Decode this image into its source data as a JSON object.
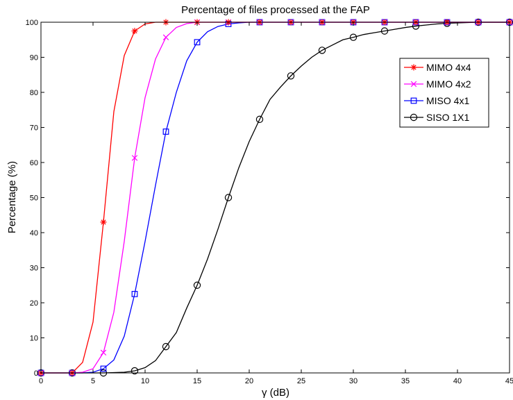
{
  "chart_data": {
    "type": "line",
    "title": "Percentage of files processed at the FAP",
    "xlabel": "γ (dB)",
    "ylabel": "Percentage (%)",
    "xlim": [
      0,
      45
    ],
    "ylim": [
      0,
      100
    ],
    "xticks": [
      0,
      5,
      10,
      15,
      20,
      25,
      30,
      35,
      40,
      45
    ],
    "yticks": [
      0,
      10,
      20,
      30,
      40,
      50,
      60,
      70,
      80,
      90,
      100
    ],
    "grid": false,
    "legend_position": "top-right",
    "series": [
      {
        "name": "MIMO 4x4",
        "color": "#ff0000",
        "marker": "asterisk",
        "x": [
          0,
          1,
          2,
          3,
          4,
          5,
          6,
          7,
          8,
          9,
          10,
          11,
          12,
          13,
          14,
          15,
          18,
          21,
          24,
          27,
          30,
          33,
          36,
          39,
          42,
          45
        ],
        "y": [
          0,
          0,
          0,
          0,
          3,
          14.5,
          43,
          74.5,
          90.5,
          97.5,
          99.5,
          100,
          100,
          100,
          100,
          100,
          100,
          100,
          100,
          100,
          100,
          100,
          100,
          100,
          100,
          100
        ],
        "markers": [
          [
            0,
            0
          ],
          [
            3,
            0
          ],
          [
            6,
            43
          ],
          [
            9,
            97.5
          ],
          [
            12,
            100
          ],
          [
            15,
            100
          ],
          [
            18,
            100
          ],
          [
            21,
            100
          ],
          [
            24,
            100
          ],
          [
            27,
            100
          ],
          [
            30,
            100
          ],
          [
            33,
            100
          ],
          [
            36,
            100
          ],
          [
            39,
            100
          ],
          [
            42,
            100
          ],
          [
            45,
            100
          ]
        ]
      },
      {
        "name": "MIMO 4x2",
        "color": "#ff00ff",
        "marker": "x",
        "x": [
          0,
          1,
          2,
          3,
          4,
          5,
          6,
          7,
          8,
          9,
          10,
          11,
          12,
          13,
          14,
          15,
          18,
          21,
          24,
          27,
          30,
          33,
          36,
          39,
          42,
          45
        ],
        "y": [
          0,
          0,
          0,
          0,
          0.2,
          1.2,
          5.8,
          17.3,
          37.5,
          61.3,
          78.5,
          89.5,
          95.7,
          98.5,
          99.6,
          100,
          100,
          100,
          100,
          100,
          100,
          100,
          100,
          100,
          100,
          100
        ],
        "markers": [
          [
            0,
            0
          ],
          [
            3,
            0
          ],
          [
            6,
            5.8
          ],
          [
            9,
            61.3
          ],
          [
            12,
            95.7
          ],
          [
            15,
            100
          ],
          [
            18,
            100
          ],
          [
            21,
            100
          ],
          [
            24,
            100
          ],
          [
            27,
            100
          ],
          [
            30,
            100
          ],
          [
            33,
            100
          ],
          [
            36,
            100
          ],
          [
            39,
            100
          ],
          [
            42,
            100
          ],
          [
            45,
            100
          ]
        ]
      },
      {
        "name": "MISO 4x1",
        "color": "#0000ff",
        "marker": "square",
        "x": [
          0,
          3,
          4,
          5,
          6,
          7,
          8,
          9,
          10,
          11,
          12,
          13,
          14,
          15,
          16,
          17,
          18,
          19,
          20,
          21,
          24,
          27,
          30,
          33,
          36,
          39,
          42,
          45
        ],
        "y": [
          0,
          0,
          0,
          0.2,
          1.2,
          3.7,
          10.5,
          22.5,
          37.5,
          53.5,
          68.8,
          80,
          89,
          94.3,
          97.3,
          98.8,
          99.5,
          99.8,
          100,
          100,
          100,
          100,
          100,
          100,
          100,
          100,
          100,
          100
        ],
        "markers": [
          [
            0,
            0
          ],
          [
            3,
            0
          ],
          [
            6,
            1.2
          ],
          [
            9,
            22.5
          ],
          [
            12,
            68.8
          ],
          [
            15,
            94.3
          ],
          [
            18,
            99.5
          ],
          [
            21,
            100
          ],
          [
            24,
            100
          ],
          [
            27,
            100
          ],
          [
            30,
            100
          ],
          [
            33,
            100
          ],
          [
            36,
            100
          ],
          [
            39,
            100
          ],
          [
            42,
            100
          ],
          [
            45,
            100
          ]
        ]
      },
      {
        "name": "SISO 1X1",
        "color": "#000000",
        "marker": "circle",
        "x": [
          0,
          3,
          6,
          8,
          9,
          10,
          11,
          12,
          13,
          14,
          15,
          16,
          17,
          18,
          19,
          20,
          21,
          22,
          23,
          24,
          25,
          26,
          27,
          28,
          29,
          30,
          31,
          32,
          33,
          34,
          35,
          36,
          37,
          38,
          39,
          40,
          42,
          45
        ],
        "y": [
          0,
          0,
          0,
          0.2,
          0.6,
          1.5,
          3.5,
          7.5,
          11.5,
          18.5,
          25,
          32.5,
          41,
          50,
          58.5,
          66,
          72.3,
          78,
          81.5,
          84.7,
          87.5,
          90,
          92,
          93.5,
          95,
          95.7,
          96.5,
          97,
          97.5,
          98,
          98.5,
          98.9,
          99.2,
          99.5,
          99.7,
          99.8,
          100,
          100
        ],
        "markers": [
          [
            0,
            0
          ],
          [
            3,
            0
          ],
          [
            6,
            0
          ],
          [
            9,
            0.6
          ],
          [
            12,
            7.5
          ],
          [
            15,
            25
          ],
          [
            18,
            50
          ],
          [
            21,
            72.3
          ],
          [
            24,
            84.7
          ],
          [
            27,
            92
          ],
          [
            30,
            95.7
          ],
          [
            33,
            97.5
          ],
          [
            36,
            98.9
          ],
          [
            39,
            99.7
          ],
          [
            42,
            100
          ],
          [
            45,
            100
          ]
        ]
      }
    ]
  }
}
